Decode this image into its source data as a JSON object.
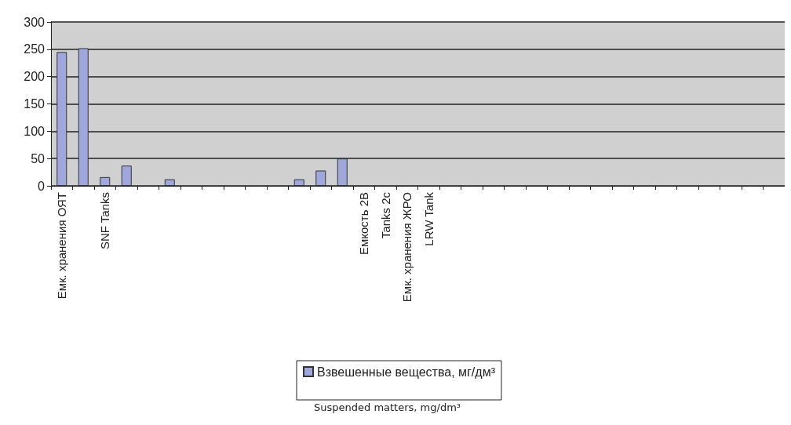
{
  "chart_data": {
    "type": "bar",
    "categories": [
      "Емк. хранения ОЯТ",
      null,
      "SNF Tanks",
      null,
      null,
      null,
      null,
      null,
      null,
      null,
      null,
      null,
      null,
      null,
      "Емкость 2В",
      "Tanks 2c",
      "Емк. хранения ЖРО",
      "LRW Tank",
      null,
      null,
      null,
      null,
      null,
      null,
      null,
      null,
      null,
      null,
      null,
      null,
      null,
      null,
      null,
      null
    ],
    "series": [
      {
        "name": "Взвешенные вещества, мг/дм³",
        "color": "#9ea8dc",
        "values": [
          245,
          252,
          16,
          37,
          null,
          12,
          null,
          null,
          null,
          null,
          null,
          12,
          28,
          50,
          null,
          null,
          null,
          null,
          null,
          null,
          null,
          null,
          null,
          null,
          null,
          null,
          null,
          null,
          null,
          null,
          null,
          null,
          null,
          null
        ]
      }
    ],
    "ylim": [
      0,
      300
    ],
    "yticks": [
      0,
      50,
      100,
      150,
      200,
      250,
      300
    ],
    "grid": "y",
    "legend": "bottom",
    "annotations": [
      "Suspended matters, mg/dm³"
    ]
  }
}
